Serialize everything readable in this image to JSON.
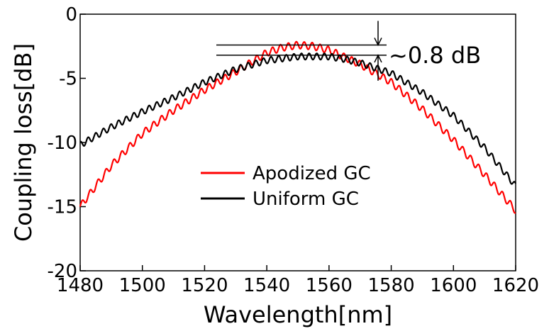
{
  "chart_data": {
    "type": "line",
    "title": "",
    "xlabel": "Wavelength[nm]",
    "ylabel": "Coupling loss[dB]",
    "xlim": [
      1480,
      1620
    ],
    "ylim": [
      -20,
      0
    ],
    "xticks": [
      1480,
      1500,
      1520,
      1540,
      1560,
      1580,
      1600,
      1620
    ],
    "yticks": [
      0,
      -5,
      -10,
      -15,
      -20
    ],
    "grid": false,
    "legend_position": "center",
    "series": [
      {
        "name": "Apodized GC",
        "color": "#ff0000",
        "x": [
          1480,
          1490,
          1500,
          1510,
          1520,
          1530,
          1540,
          1545,
          1550,
          1555,
          1560,
          1570,
          1580,
          1590,
          1600,
          1610,
          1620
        ],
        "y": [
          -15.0,
          -11.8,
          -9.3,
          -7.5,
          -5.9,
          -4.5,
          -3.0,
          -2.6,
          -2.4,
          -2.5,
          -2.8,
          -3.9,
          -5.3,
          -7.4,
          -9.8,
          -12.5,
          -15.3
        ]
      },
      {
        "name": "Uniform GC",
        "color": "#000000",
        "x": [
          1480,
          1490,
          1500,
          1510,
          1520,
          1530,
          1540,
          1550,
          1560,
          1565,
          1570,
          1580,
          1590,
          1600,
          1610,
          1620
        ],
        "y": [
          -10.2,
          -8.8,
          -7.6,
          -6.5,
          -5.3,
          -4.3,
          -3.6,
          -3.3,
          -3.3,
          -3.5,
          -3.8,
          -4.6,
          -6.1,
          -7.9,
          -10.4,
          -13.4
        ]
      }
    ],
    "annotation": {
      "text": "~0.8 dB",
      "levels": [
        -2.4,
        -3.2
      ]
    }
  }
}
